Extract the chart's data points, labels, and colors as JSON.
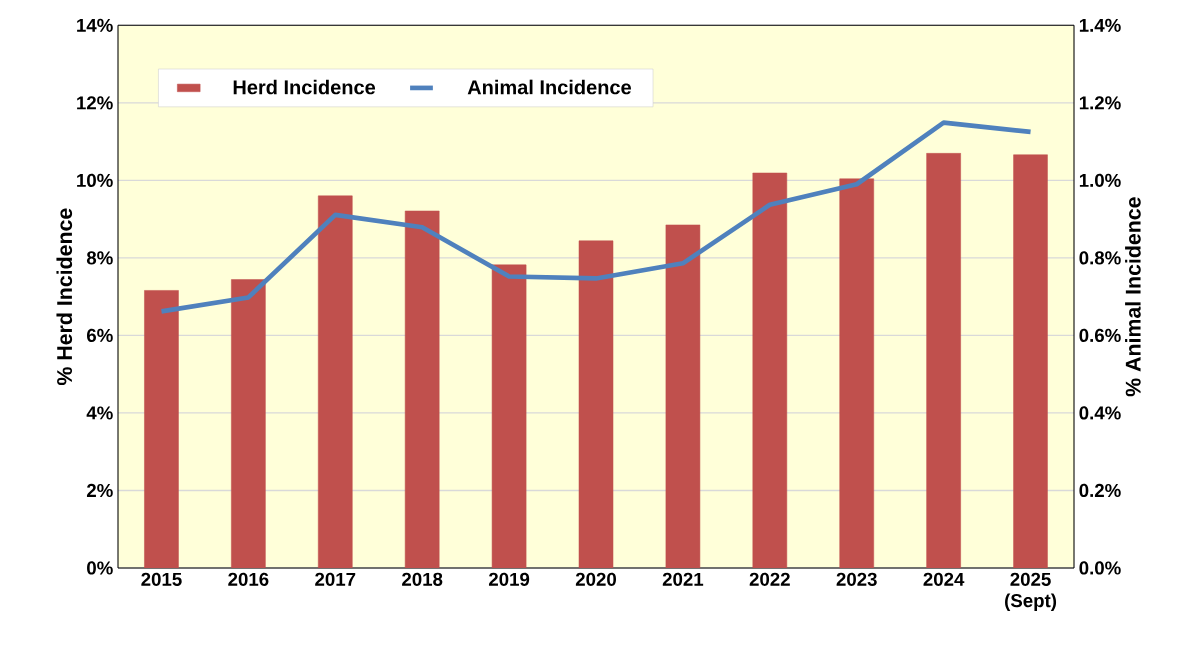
{
  "chart_data": {
    "type": "bar",
    "categories": [
      "2015",
      "2016",
      "2017",
      "2018",
      "2019",
      "2020",
      "2021",
      "2022",
      "2023",
      "2024",
      "2025 (Sept)"
    ],
    "series": [
      {
        "name": "Herd Incidence",
        "color": "#c0504d",
        "values": [
          7.16,
          7.44,
          9.6,
          9.21,
          7.82,
          8.44,
          8.85,
          10.19,
          10.04,
          10.7,
          10.66
        ]
      },
      {
        "name": "Animal Incidence",
        "type": "line",
        "axis": "y2",
        "color": "#4f81bd",
        "values": [
          0.662,
          0.698,
          0.911,
          0.879,
          0.752,
          0.747,
          0.786,
          0.937,
          0.99,
          1.149,
          1.125
        ]
      }
    ],
    "ylabel": "% Herd Incidence",
    "y2label": "% Animal Incidence",
    "ylim": [
      0,
      14
    ],
    "yticks": [
      {
        "value": 0,
        "label": "0%"
      },
      {
        "value": 2,
        "label": "2%"
      },
      {
        "value": 4,
        "label": "4%"
      },
      {
        "value": 6,
        "label": "6%"
      },
      {
        "value": 8,
        "label": "8%"
      },
      {
        "value": 10,
        "label": "10%"
      },
      {
        "value": 12,
        "label": "12%"
      },
      {
        "value": 14,
        "label": "14%"
      }
    ],
    "y2lim": [
      0,
      1.4
    ],
    "y2ticks": [
      {
        "value": 0,
        "label": "0.0%"
      },
      {
        "value": 0.2,
        "label": "0.2%"
      },
      {
        "value": 0.4,
        "label": "0.4%"
      },
      {
        "value": 0.6,
        "label": "0.6%"
      },
      {
        "value": 0.8,
        "label": "0.8%"
      },
      {
        "value": 1.0,
        "label": "1.0%"
      },
      {
        "value": 1.2,
        "label": "1.2%"
      },
      {
        "value": 1.4,
        "label": "1.4%"
      }
    ],
    "grid": "y",
    "legend": "top left",
    "marker": "none",
    "line_style": "solid"
  }
}
